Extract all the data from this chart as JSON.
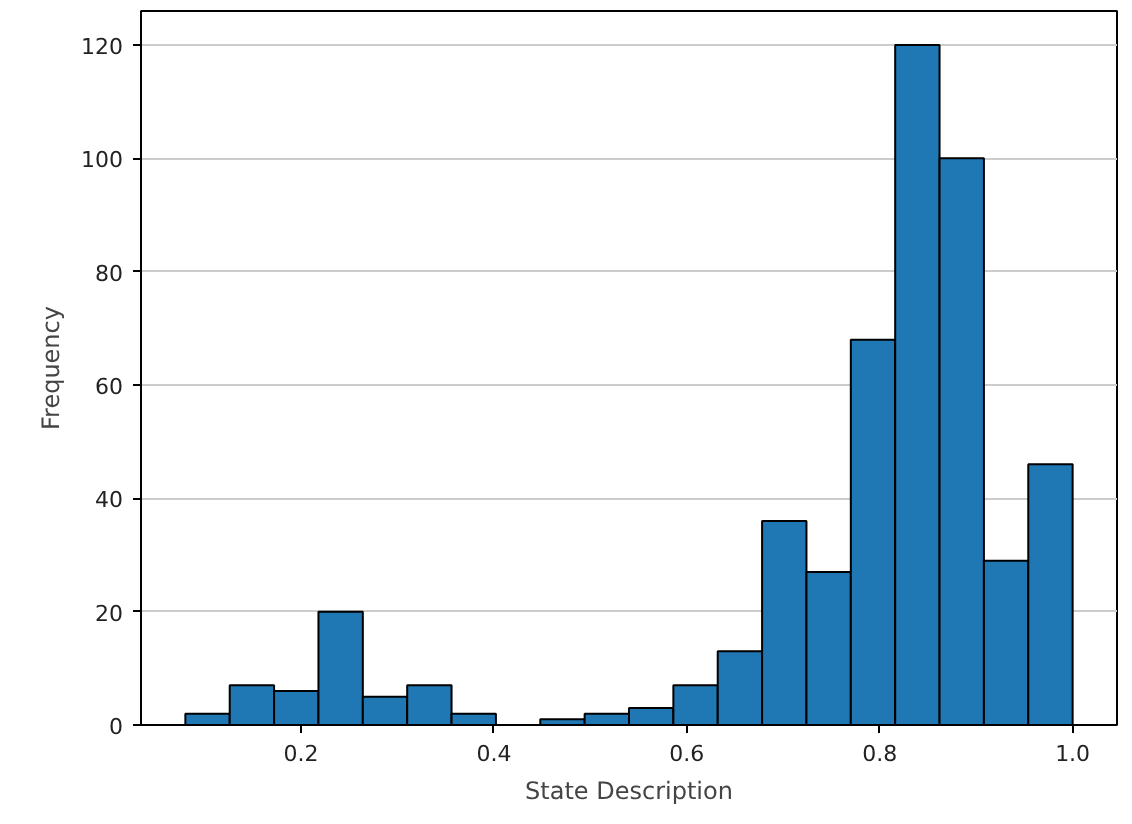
{
  "chart_data": {
    "type": "histogram",
    "xlabel": "State Description",
    "ylabel": "Frequency",
    "bins": [
      0.08,
      0.126,
      0.172,
      0.218,
      0.264,
      0.31,
      0.356,
      0.402,
      0.448,
      0.494,
      0.54,
      0.586,
      0.632,
      0.678,
      0.724,
      0.77,
      0.816,
      0.862,
      0.908,
      0.954,
      1.0
    ],
    "values": [
      2,
      7,
      6,
      20,
      5,
      7,
      2,
      0,
      1,
      2,
      3,
      7,
      13,
      36,
      27,
      68,
      120,
      100,
      29,
      46
    ],
    "color": "#1f77b4",
    "xlim": [
      0.034,
      1.046
    ],
    "ylim": [
      0,
      126
    ],
    "xticks": [
      {
        "value": 0.2,
        "label": "0.2"
      },
      {
        "value": 0.4,
        "label": "0.4"
      },
      {
        "value": 0.6,
        "label": "0.6"
      },
      {
        "value": 0.8,
        "label": "0.8"
      },
      {
        "value": 1,
        "label": "1.0"
      }
    ],
    "yticks": [
      0,
      20,
      40,
      60,
      80,
      100,
      120
    ],
    "grid": "y"
  }
}
